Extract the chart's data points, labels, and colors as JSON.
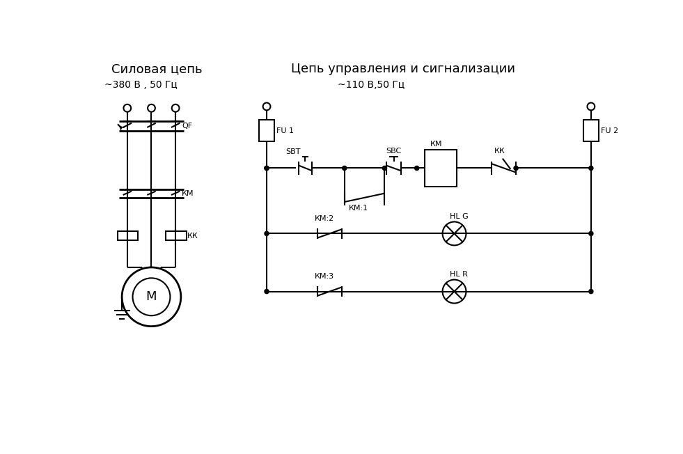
{
  "title_left": "Силовая цепь",
  "title_right": "Цепь управления и сигнализации",
  "subtitle_left": "~380 В , 50 Гц",
  "subtitle_right": "~110 В,50 Гц",
  "bg_color": "#ffffff",
  "line_color": "#000000",
  "lw": 1.5
}
